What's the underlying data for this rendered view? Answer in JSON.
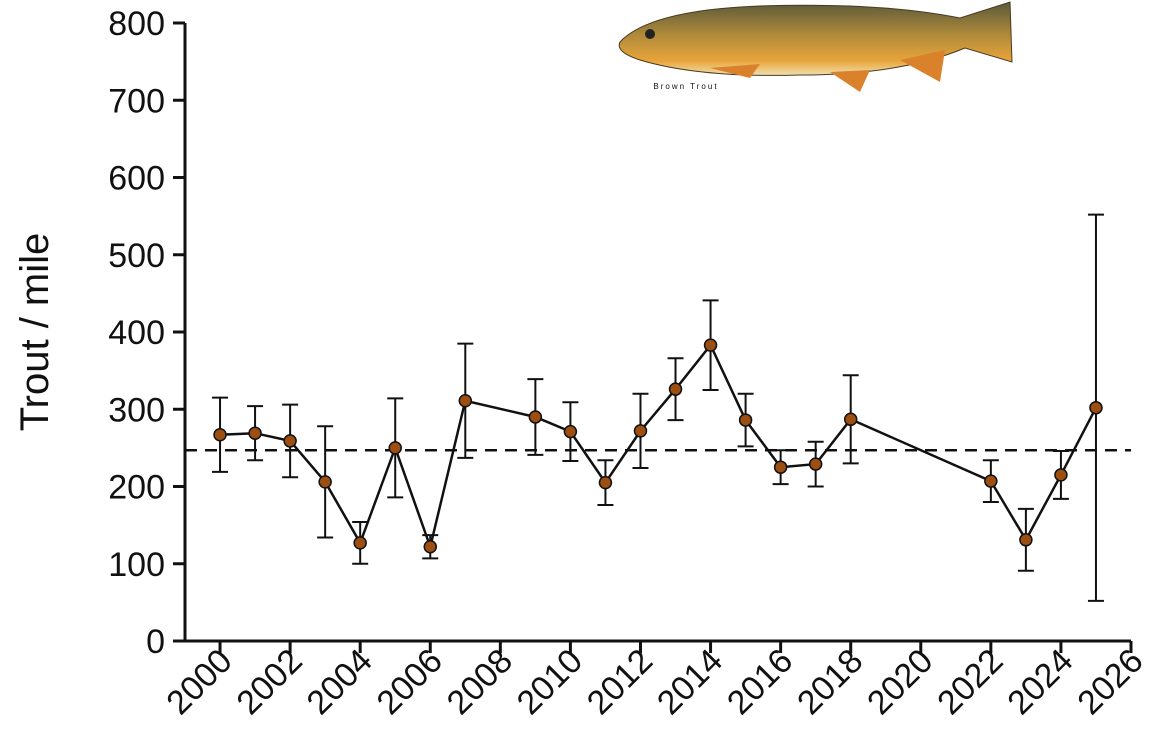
{
  "chart_data": {
    "type": "line",
    "ylabel": "Trout / mile",
    "image_caption": "Brown Trout",
    "x": [
      2000,
      2001,
      2002,
      2003,
      2004,
      2005,
      2006,
      2007,
      2009,
      2010,
      2011,
      2012,
      2013,
      2014,
      2015,
      2016,
      2017,
      2018,
      2022,
      2023,
      2024,
      2025
    ],
    "values": [
      267,
      269,
      259,
      206,
      127,
      250,
      122,
      311,
      290,
      271,
      205,
      272,
      326,
      383,
      286,
      225,
      229,
      287,
      207,
      131,
      215,
      302
    ],
    "errors": [
      48,
      35,
      47,
      72,
      27,
      64,
      15,
      74,
      49,
      38,
      29,
      48,
      40,
      58,
      34,
      22,
      29,
      57,
      27,
      40,
      31,
      250
    ],
    "color": "#9c4f10",
    "reference_line": 247,
    "xlim": [
      1999,
      2026
    ],
    "xticks": [
      2000,
      2002,
      2004,
      2006,
      2008,
      2010,
      2012,
      2014,
      2016,
      2018,
      2020,
      2022,
      2024,
      2026
    ],
    "ylim": [
      0,
      800
    ],
    "yticks": [
      0,
      100,
      200,
      300,
      400,
      500,
      600,
      700,
      800
    ],
    "grid": false
  }
}
